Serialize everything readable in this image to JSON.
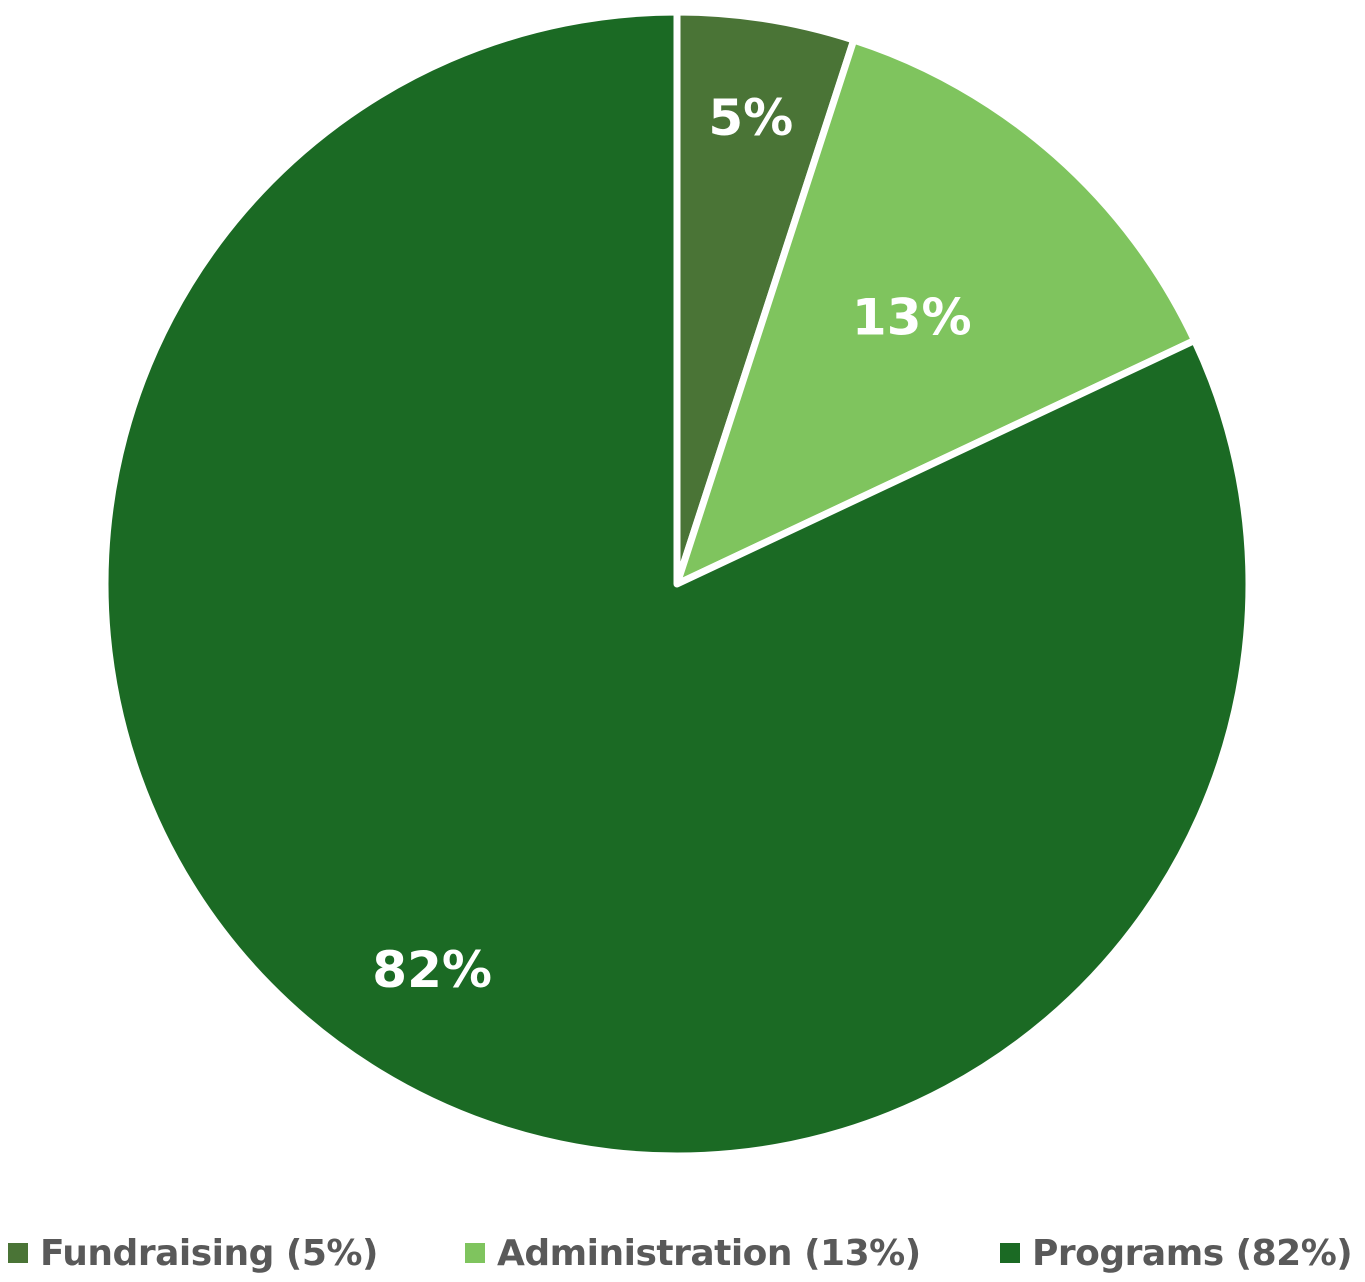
{
  "chart_data": {
    "type": "pie",
    "categories": [
      "Fundraising",
      "Administration",
      "Programs"
    ],
    "values": [
      5,
      13,
      82
    ],
    "data_labels": [
      "5%",
      "13%",
      "82%"
    ],
    "colors": [
      "#4a7436",
      "#7fc45e",
      "#1b6a24"
    ],
    "legend": {
      "placement": "bottom",
      "entries": [
        "Fundraising (5%)",
        "Administration (13%)",
        "Programs (82%)"
      ]
    },
    "slice_border_color": "#ffffff"
  }
}
